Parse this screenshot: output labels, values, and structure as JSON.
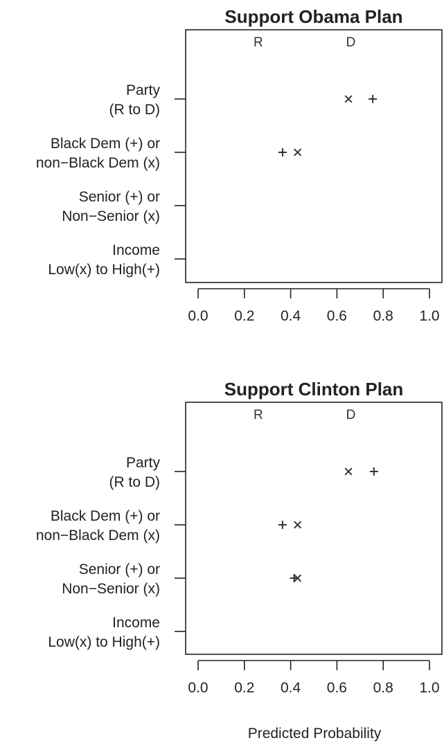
{
  "chart_data": [
    {
      "type": "scatter",
      "title": "Support Obama Plan",
      "xlim": [
        0.0,
        1.0
      ],
      "xticks": [
        "0.0",
        "0.2",
        "0.4",
        "0.6",
        "0.8",
        "1.0"
      ],
      "ylabels": [
        [
          "Party",
          "(R to D)"
        ],
        [
          "Black Dem (+) or",
          "non−Black Dem (x)"
        ],
        [
          "Senior (+) or",
          "Non−Senior (x)"
        ],
        [
          "Income",
          "Low(x) to High(+)"
        ]
      ],
      "party_markers": [
        {
          "label": "R",
          "x": 0.26
        },
        {
          "label": "D",
          "x": 0.66
        }
      ],
      "points": [
        {
          "row": 0,
          "symbol": "x",
          "x": 0.65
        },
        {
          "row": 0,
          "symbol": "+",
          "x": 0.755
        },
        {
          "row": 1,
          "symbol": "+",
          "x": 0.365
        },
        {
          "row": 1,
          "symbol": "x",
          "x": 0.43
        }
      ]
    },
    {
      "type": "scatter",
      "title": "Support Clinton Plan",
      "xlim": [
        0.0,
        1.0
      ],
      "xticks": [
        "0.0",
        "0.2",
        "0.4",
        "0.6",
        "0.8",
        "1.0"
      ],
      "ylabels": [
        [
          "Party",
          "(R to D)"
        ],
        [
          "Black Dem (+) or",
          "non−Black Dem (x)"
        ],
        [
          "Senior (+) or",
          "Non−Senior (x)"
        ],
        [
          "Income",
          "Low(x) to High(+)"
        ]
      ],
      "party_markers": [
        {
          "label": "R",
          "x": 0.26
        },
        {
          "label": "D",
          "x": 0.66
        }
      ],
      "points": [
        {
          "row": 0,
          "symbol": "x",
          "x": 0.65
        },
        {
          "row": 0,
          "symbol": "+",
          "x": 0.76
        },
        {
          "row": 1,
          "symbol": "+",
          "x": 0.365
        },
        {
          "row": 1,
          "symbol": "x",
          "x": 0.43
        },
        {
          "row": 2,
          "symbol": "x",
          "x": 0.43
        },
        {
          "row": 2,
          "symbol": "+",
          "x": 0.415
        }
      ]
    }
  ],
  "xlabel": "Predicted Probability"
}
